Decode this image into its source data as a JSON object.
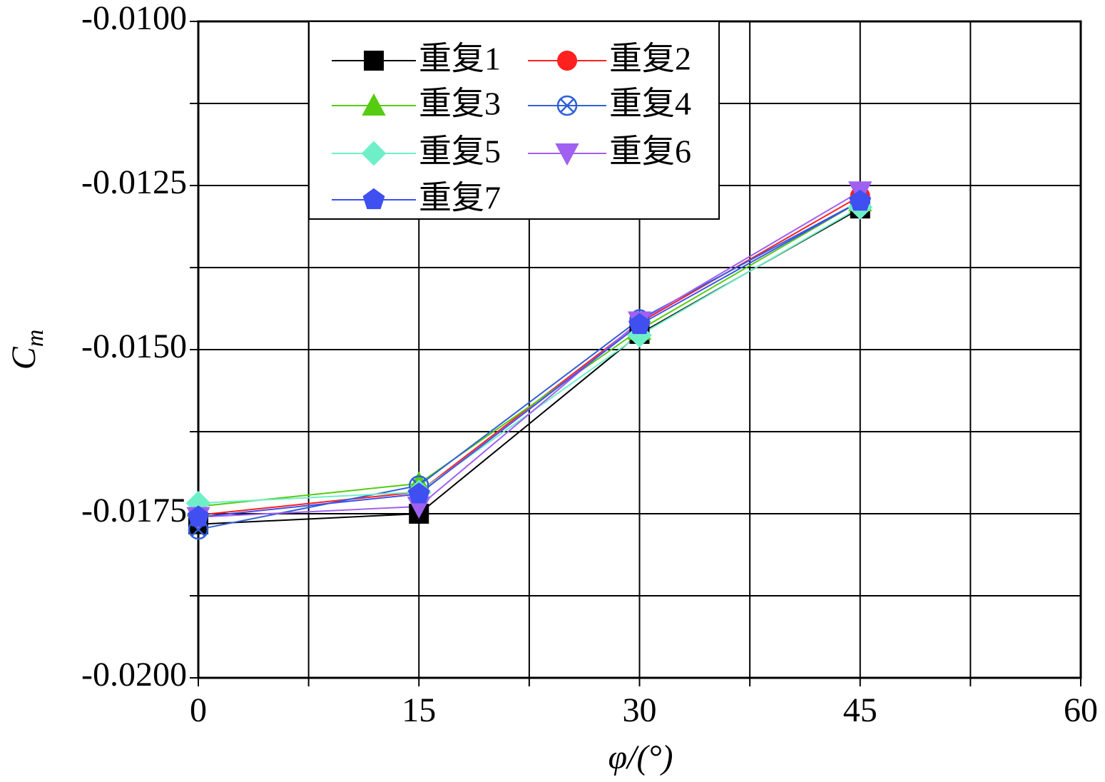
{
  "chart_data": {
    "type": "line",
    "xlabel": "φ/(°)",
    "ylabel": "C",
    "ylabel_sub": "m",
    "x": [
      0,
      15,
      30,
      45
    ],
    "series": [
      {
        "name": "重复1",
        "color": "#000000",
        "marker": "square",
        "values": [
          -0.01766,
          -0.0175,
          -0.01476,
          -0.01285
        ]
      },
      {
        "name": "重复2",
        "color": "#ff2020",
        "marker": "circle",
        "values": [
          -0.01752,
          -0.01717,
          -0.01459,
          -0.01266
        ]
      },
      {
        "name": "重复3",
        "color": "#55cc11",
        "marker": "triangle",
        "values": [
          -0.01739,
          -0.01704,
          -0.0147,
          -0.01274
        ]
      },
      {
        "name": "重复4",
        "color": "#2f5fd8",
        "marker": "circle-x",
        "values": [
          -0.01774,
          -0.01707,
          -0.01454,
          -0.01274
        ]
      },
      {
        "name": "重复5",
        "color": "#6fefc8",
        "marker": "diamond",
        "values": [
          -0.01734,
          -0.01717,
          -0.01478,
          -0.01283
        ]
      },
      {
        "name": "重复6",
        "color": "#a060f0",
        "marker": "triangle-down",
        "values": [
          -0.01755,
          -0.01739,
          -0.01457,
          -0.01259
        ]
      },
      {
        "name": "重复7",
        "color": "#3f4ff0",
        "marker": "pentagon",
        "values": [
          -0.01755,
          -0.0172,
          -0.01462,
          -0.01274
        ]
      }
    ],
    "xlim": [
      0,
      60
    ],
    "xticks": [
      0,
      15,
      30,
      45,
      60
    ],
    "minor_xticks": [
      7.5,
      22.5,
      37.5,
      52.5
    ],
    "ylim": [
      -0.02,
      -0.01
    ],
    "yticks": [
      {
        "value": -0.02,
        "label": "-0.0200"
      },
      {
        "value": -0.0175,
        "label": "-0.0175"
      },
      {
        "value": -0.015,
        "label": "-0.0150"
      },
      {
        "value": -0.0125,
        "label": "-0.0125"
      },
      {
        "value": -0.01,
        "label": "-0.0100"
      }
    ],
    "minor_yticks": [
      -0.01875,
      -0.01625,
      -0.01375,
      -0.01125
    ],
    "grid": true,
    "legend": "upper left"
  }
}
